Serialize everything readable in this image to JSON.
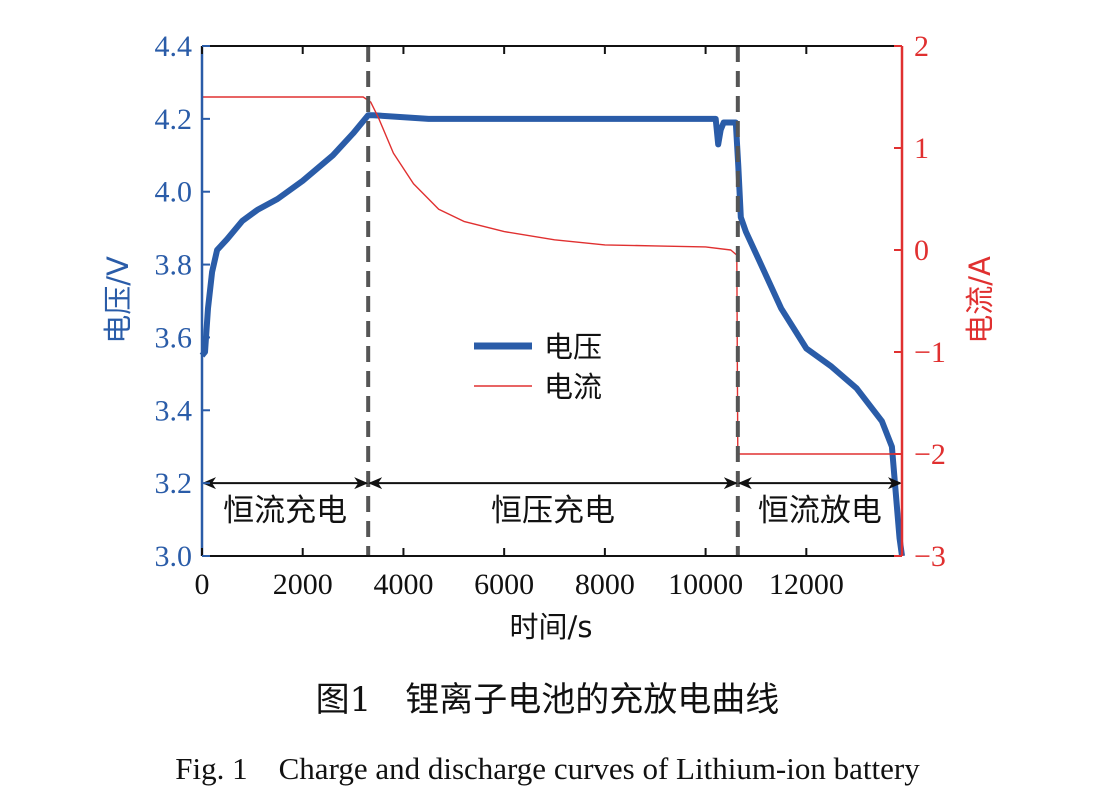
{
  "caption": {
    "cn": "图1　锂离子电池的充放电曲线",
    "en": "Fig. 1　Charge and discharge curves of Lithium-ion battery"
  },
  "colors": {
    "voltage": "#2a5ca8",
    "current": "#e03030",
    "axis": "#111111",
    "phase": "#555555"
  },
  "chart_data": {
    "type": "line",
    "xlabel": "时间/s",
    "ylabel_left": "电压/V",
    "ylabel_right": "电流/A",
    "xlim": [
      0,
      13900
    ],
    "ylim_left": [
      3.0,
      4.4
    ],
    "ylim_right": [
      -3,
      2
    ],
    "x_ticks": [
      0,
      2000,
      4000,
      6000,
      8000,
      10000,
      12000
    ],
    "y_left_ticks": [
      "3.0",
      "3.2",
      "3.4",
      "3.6",
      "3.8",
      "4.0",
      "4.2",
      "4.4"
    ],
    "y_right_ticks": [
      "−3",
      "−2",
      "−1",
      "0",
      "1",
      "2"
    ],
    "grid": false,
    "legend_position": "center",
    "series": [
      {
        "name": "电压",
        "axis": "left",
        "x": [
          0,
          60,
          120,
          200,
          300,
          500,
          800,
          1100,
          1500,
          2000,
          2600,
          3000,
          3300,
          3400,
          4500,
          6000,
          8000,
          10000,
          10200,
          10250,
          10300,
          10360,
          10600,
          10650,
          10700,
          10800,
          11000,
          11500,
          12000,
          12500,
          13000,
          13500,
          13700,
          13850,
          13900
        ],
        "values": [
          3.55,
          3.56,
          3.68,
          3.78,
          3.84,
          3.87,
          3.92,
          3.95,
          3.98,
          4.03,
          4.1,
          4.16,
          4.21,
          4.21,
          4.2,
          4.2,
          4.2,
          4.2,
          4.2,
          4.13,
          4.17,
          4.19,
          4.19,
          4.07,
          3.93,
          3.89,
          3.83,
          3.68,
          3.57,
          3.52,
          3.46,
          3.37,
          3.3,
          3.05,
          3.0
        ]
      },
      {
        "name": "电流",
        "axis": "right",
        "x": [
          0,
          2000,
          3200,
          3350,
          3500,
          3800,
          4200,
          4700,
          5200,
          6000,
          7000,
          8000,
          9000,
          10000,
          10500,
          10620,
          10640,
          11000,
          12000,
          13000,
          13900
        ],
        "values": [
          1.5,
          1.5,
          1.5,
          1.45,
          1.3,
          0.95,
          0.65,
          0.4,
          0.28,
          0.18,
          0.1,
          0.05,
          0.04,
          0.03,
          0.0,
          -0.05,
          -2.0,
          -2.0,
          -2.0,
          -2.0,
          -2.0
        ]
      }
    ],
    "phase_lines_x": [
      3300,
      10640
    ],
    "phase_arrow_y": 3.2,
    "phases": [
      {
        "label": "恒流充电",
        "from": 0,
        "to": 3300
      },
      {
        "label": "恒压充电",
        "from": 3300,
        "to": 10640
      },
      {
        "label": "恒流放电",
        "from": 10640,
        "to": 13900
      }
    ]
  }
}
